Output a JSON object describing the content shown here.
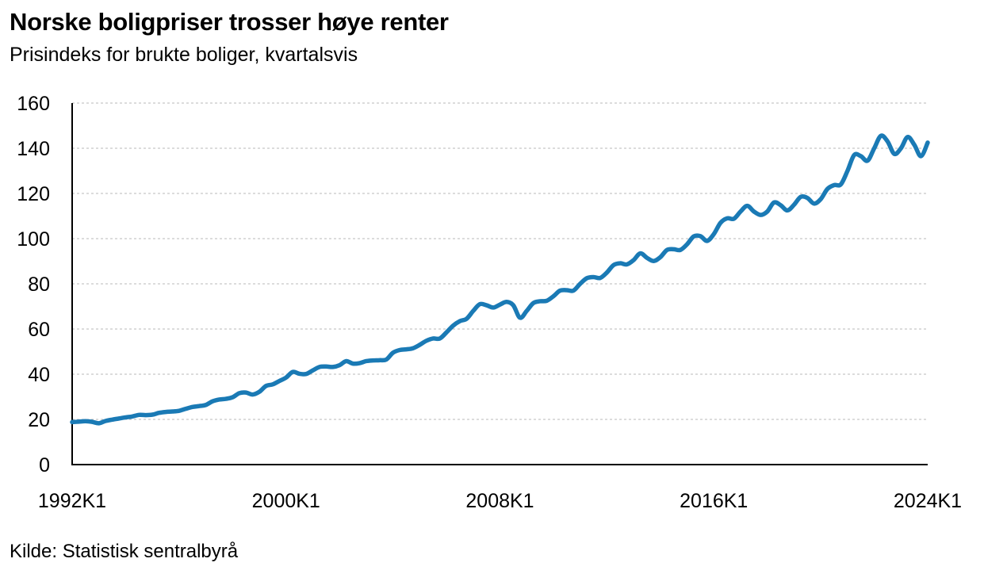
{
  "header": {
    "title": "Norske boligpriser trosser høye renter",
    "subtitle": "Prisindeks for brukte boliger, kvartalsvis"
  },
  "footer": {
    "source": "Kilde: Statistisk sentralbyrå"
  },
  "colors": {
    "line": "#1a7ab5",
    "grid": "#b8b8b8",
    "axis": "#000000"
  },
  "chart_data": {
    "type": "line",
    "title": "Norske boligpriser trosser høye renter",
    "subtitle": "Prisindeks for brukte boliger, kvartalsvis",
    "xlabel": "",
    "ylabel": "",
    "ylim": [
      0,
      160
    ],
    "yticks": [
      0,
      20,
      40,
      60,
      80,
      100,
      120,
      140,
      160
    ],
    "xtick_labels": [
      "1992K1",
      "2000K1",
      "2008K1",
      "2016K1",
      "2024K1"
    ],
    "grid": true,
    "legend": "none",
    "series": [
      {
        "x": [
          "1992K1",
          "1992K2",
          "1992K3",
          "1992K4",
          "1993K1",
          "1993K2",
          "1993K3",
          "1993K4",
          "1994K1",
          "1994K2",
          "1994K3",
          "1994K4",
          "1995K1",
          "1995K2",
          "1995K3",
          "1995K4",
          "1996K1",
          "1996K2",
          "1996K3",
          "1996K4",
          "1997K1",
          "1997K2",
          "1997K3",
          "1997K4",
          "1998K1",
          "1998K2",
          "1998K3",
          "1998K4",
          "1999K1",
          "1999K2",
          "1999K3",
          "1999K4",
          "2000K1",
          "2000K2",
          "2000K3",
          "2000K4",
          "2001K1",
          "2001K2",
          "2001K3",
          "2001K4",
          "2002K1",
          "2002K2",
          "2002K3",
          "2002K4",
          "2003K1",
          "2003K2",
          "2003K3",
          "2003K4",
          "2004K1",
          "2004K2",
          "2004K3",
          "2004K4",
          "2005K1",
          "2005K2",
          "2005K3",
          "2005K4",
          "2006K1",
          "2006K2",
          "2006K3",
          "2006K4",
          "2007K1",
          "2007K2",
          "2007K3",
          "2007K4",
          "2008K1",
          "2008K2",
          "2008K3",
          "2008K4",
          "2009K1",
          "2009K2",
          "2009K3",
          "2009K4",
          "2010K1",
          "2010K2",
          "2010K3",
          "2010K4",
          "2011K1",
          "2011K2",
          "2011K3",
          "2011K4",
          "2012K1",
          "2012K2",
          "2012K3",
          "2012K4",
          "2013K1",
          "2013K2",
          "2013K3",
          "2013K4",
          "2014K1",
          "2014K2",
          "2014K3",
          "2014K4",
          "2015K1",
          "2015K2",
          "2015K3",
          "2015K4",
          "2016K1",
          "2016K2",
          "2016K3",
          "2016K4",
          "2017K1",
          "2017K2",
          "2017K3",
          "2017K4",
          "2018K1",
          "2018K2",
          "2018K3",
          "2018K4",
          "2019K1",
          "2019K2",
          "2019K3",
          "2019K4",
          "2020K1",
          "2020K2",
          "2020K3",
          "2020K4",
          "2021K1",
          "2021K2",
          "2021K3",
          "2021K4",
          "2022K1",
          "2022K2",
          "2022K3",
          "2022K4",
          "2023K1",
          "2023K2",
          "2023K3",
          "2023K4",
          "2024K1"
        ],
        "values": [
          18.8,
          19.0,
          19.2,
          18.9,
          18.3,
          19.3,
          19.9,
          20.4,
          20.9,
          21.3,
          22.0,
          21.9,
          22.1,
          22.9,
          23.3,
          23.5,
          23.8,
          24.7,
          25.5,
          25.9,
          26.4,
          28.0,
          28.8,
          29.1,
          29.8,
          31.6,
          31.9,
          31.0,
          32.2,
          34.8,
          35.5,
          37.0,
          38.5,
          41.0,
          40.2,
          40.1,
          41.7,
          43.2,
          43.4,
          43.2,
          44.0,
          45.8,
          44.7,
          44.9,
          45.8,
          46.1,
          46.2,
          46.5,
          49.5,
          50.7,
          51.0,
          51.5,
          53.0,
          54.8,
          55.8,
          55.8,
          58.5,
          61.5,
          63.5,
          64.5,
          68.0,
          71.0,
          70.5,
          69.5,
          70.8,
          72.0,
          70.5,
          65.0,
          68.0,
          71.5,
          72.3,
          72.5,
          74.5,
          77.0,
          77.2,
          77.0,
          80.0,
          82.5,
          83.0,
          82.6,
          85.0,
          88.3,
          89.1,
          88.6,
          90.5,
          93.5,
          91.5,
          90.1,
          91.8,
          95.0,
          95.3,
          95.0,
          97.5,
          101.0,
          101.1,
          99.0,
          102.0,
          107.0,
          109.0,
          108.8,
          112.0,
          114.5,
          112.0,
          110.5,
          112.0,
          116.0,
          114.8,
          112.5,
          115.0,
          118.5,
          118.0,
          115.5,
          117.5,
          122.0,
          123.7,
          124.0,
          130.0,
          137.0,
          136.5,
          134.5,
          140.0,
          145.5,
          143.0,
          137.5,
          140.0,
          145.0,
          141.5,
          136.5,
          142.5
        ]
      }
    ]
  }
}
